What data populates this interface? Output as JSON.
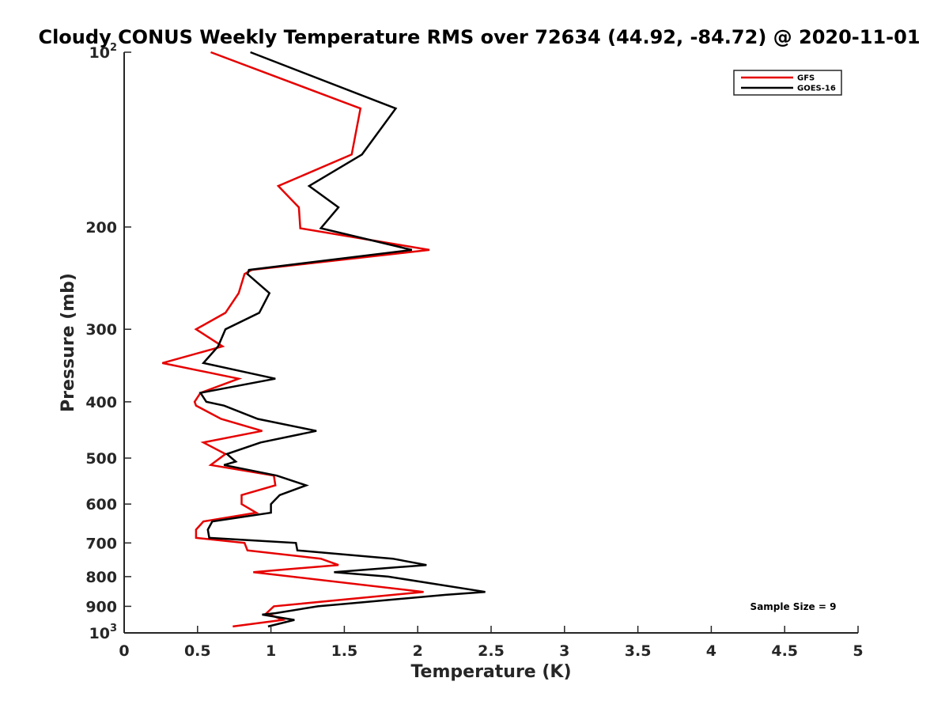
{
  "chart_data": {
    "type": "line",
    "title": "Cloudy CONUS Weekly Temperature RMS over 72634 (44.92, -84.72) @ 2020-11-01",
    "xlabel": "Temperature (K)",
    "ylabel": "Pressure (mb)",
    "xlim": [
      0,
      5
    ],
    "ylim": [
      100,
      1000
    ],
    "yscale": "log",
    "y_reversed": true,
    "x_ticks": [
      "0",
      "0.5",
      "1",
      "1.5",
      "2",
      "2.5",
      "3",
      "3.5",
      "4",
      "4.5",
      "5"
    ],
    "y_ticks": [
      {
        "value": 100,
        "base": "10",
        "exp": "2"
      },
      {
        "value": 200,
        "label": "200"
      },
      {
        "value": 300,
        "label": "300"
      },
      {
        "value": 400,
        "label": "400"
      },
      {
        "value": 500,
        "label": "500"
      },
      {
        "value": 600,
        "label": "600"
      },
      {
        "value": 700,
        "label": "700"
      },
      {
        "value": 800,
        "label": "800"
      },
      {
        "value": 900,
        "label": "900"
      },
      {
        "value": 1000,
        "base": "10",
        "exp": "3"
      }
    ],
    "grid": false,
    "legend_position": "top-right",
    "annotation": "Sample Size = 9",
    "series": [
      {
        "name": "GFS",
        "color": "#e60000",
        "points": [
          [
            0.59,
            100
          ],
          [
            1.61,
            125
          ],
          [
            1.55,
            150
          ],
          [
            1.05,
            170
          ],
          [
            1.19,
            185
          ],
          [
            1.2,
            201
          ],
          [
            2.08,
            219
          ],
          [
            0.87,
            237
          ],
          [
            0.82,
            241
          ],
          [
            0.78,
            260
          ],
          [
            0.69,
            281
          ],
          [
            0.49,
            300
          ],
          [
            0.67,
            321
          ],
          [
            0.26,
            343
          ],
          [
            0.78,
            365
          ],
          [
            0.52,
            386
          ],
          [
            0.48,
            400
          ],
          [
            0.49,
            406
          ],
          [
            0.66,
            428
          ],
          [
            0.94,
            449
          ],
          [
            0.54,
            470
          ],
          [
            0.69,
            492
          ],
          [
            0.59,
            514
          ],
          [
            1.02,
            536
          ],
          [
            1.03,
            557
          ],
          [
            0.8,
            579
          ],
          [
            0.8,
            600
          ],
          [
            0.9,
            621
          ],
          [
            0.54,
            643
          ],
          [
            0.49,
            664
          ],
          [
            0.49,
            686
          ],
          [
            0.82,
            700
          ],
          [
            0.84,
            721
          ],
          [
            1.34,
            745
          ],
          [
            1.46,
            764
          ],
          [
            0.88,
            786
          ],
          [
            2.04,
            850
          ],
          [
            1.02,
            900
          ],
          [
            0.97,
            925
          ],
          [
            1.08,
            950
          ],
          [
            0.74,
            975
          ]
        ]
      },
      {
        "name": "GOES-16",
        "color": "#000000",
        "points": [
          [
            0.86,
            100
          ],
          [
            1.85,
            125
          ],
          [
            1.62,
            150
          ],
          [
            1.26,
            170
          ],
          [
            1.46,
            185
          ],
          [
            1.34,
            201
          ],
          [
            1.96,
            219
          ],
          [
            0.85,
            237
          ],
          [
            0.84,
            241
          ],
          [
            0.99,
            260
          ],
          [
            0.92,
            281
          ],
          [
            0.69,
            300
          ],
          [
            0.64,
            321
          ],
          [
            0.54,
            343
          ],
          [
            1.03,
            365
          ],
          [
            0.52,
            386
          ],
          [
            0.56,
            400
          ],
          [
            0.68,
            406
          ],
          [
            0.91,
            428
          ],
          [
            1.31,
            449
          ],
          [
            0.93,
            470
          ],
          [
            0.7,
            492
          ],
          [
            0.76,
            507
          ],
          [
            0.68,
            514
          ],
          [
            1.04,
            536
          ],
          [
            1.24,
            557
          ],
          [
            1.06,
            579
          ],
          [
            1.0,
            600
          ],
          [
            1.0,
            621
          ],
          [
            0.6,
            643
          ],
          [
            0.57,
            664
          ],
          [
            0.58,
            686
          ],
          [
            1.17,
            700
          ],
          [
            1.18,
            721
          ],
          [
            1.83,
            745
          ],
          [
            2.06,
            764
          ],
          [
            1.43,
            786
          ],
          [
            1.8,
            800
          ],
          [
            2.46,
            850
          ],
          [
            2.19,
            860
          ],
          [
            1.32,
            900
          ],
          [
            1.03,
            925
          ],
          [
            0.94,
            930
          ],
          [
            1.16,
            950
          ],
          [
            0.98,
            975
          ]
        ]
      }
    ]
  }
}
